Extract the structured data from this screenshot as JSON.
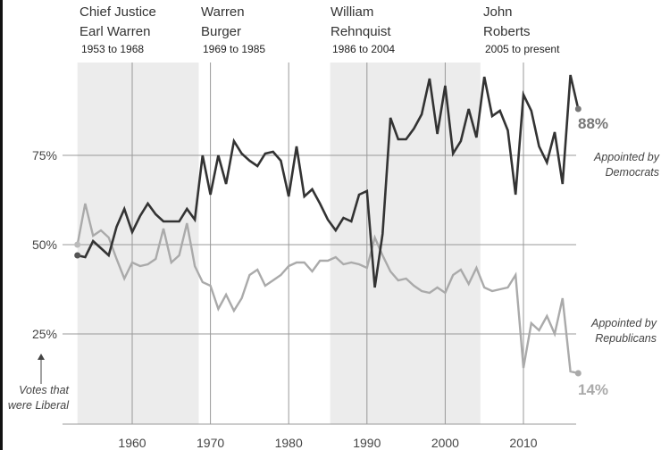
{
  "chart_data": {
    "type": "line",
    "title": "",
    "xlabel": "",
    "ylabel": "Votes that were Liberal",
    "xlim": [
      1953,
      2017
    ],
    "ylim": [
      0,
      100
    ],
    "x_ticks": [
      1960,
      1970,
      1980,
      1990,
      2000,
      2010
    ],
    "x_tick_labels": [
      "1960",
      "1970",
      "1980",
      "1990",
      "2000",
      "2010"
    ],
    "y_ticks": [
      25,
      50,
      75
    ],
    "y_tick_labels": [
      "25%",
      "50%",
      "75%"
    ],
    "grid": true,
    "eras": [
      {
        "title_lines": [
          "Chief Justice",
          "Earl Warren"
        ],
        "period": "1953 to 1968",
        "start": 1953,
        "end": 1968.5,
        "shaded": true
      },
      {
        "title_lines": [
          "Warren",
          "Burger"
        ],
        "period": "1969 to 1985",
        "start": 1968.5,
        "end": 1985.3,
        "shaded": false
      },
      {
        "title_lines": [
          "William",
          "Rehnquist"
        ],
        "period": "1986 to 2004",
        "start": 1985.3,
        "end": 2004.5,
        "shaded": true
      },
      {
        "title_lines": [
          "John",
          "Roberts"
        ],
        "period": "2005 to present",
        "start": 2004.5,
        "end": 2017,
        "shaded": false
      }
    ],
    "x": [
      1953,
      1954,
      1955,
      1956,
      1957,
      1958,
      1959,
      1960,
      1961,
      1962,
      1963,
      1964,
      1965,
      1966,
      1967,
      1968,
      1969,
      1970,
      1971,
      1972,
      1973,
      1974,
      1975,
      1976,
      1977,
      1978,
      1979,
      1980,
      1981,
      1982,
      1983,
      1984,
      1985,
      1986,
      1987,
      1988,
      1989,
      1990,
      1991,
      1992,
      1993,
      1994,
      1995,
      1996,
      1997,
      1998,
      1999,
      2000,
      2001,
      2002,
      2003,
      2004,
      2005,
      2006,
      2007,
      2008,
      2009,
      2010,
      2011,
      2012,
      2013,
      2014,
      2015,
      2016,
      2017
    ],
    "series": [
      {
        "name": "Appointed by Democrats",
        "label_lines": [
          "Appointed by",
          "Democrats"
        ],
        "end_label": "88%",
        "color": "#333333",
        "values": [
          47,
          46.5,
          51,
          49,
          47,
          55,
          60,
          53.5,
          58,
          61.5,
          58.5,
          56.5,
          56.5,
          56.5,
          60,
          57,
          75,
          64,
          75,
          67,
          79,
          75.5,
          73.5,
          72,
          75.5,
          76,
          73.5,
          63.5,
          77.5,
          63.5,
          65.5,
          61.5,
          57,
          54,
          57.5,
          56.5,
          64,
          65,
          38,
          53,
          85.5,
          79.5,
          79.5,
          82.5,
          86.5,
          96.5,
          81,
          94.5,
          75.5,
          79,
          88,
          80,
          97,
          86,
          87.5,
          82,
          64,
          92,
          87.5,
          77.5,
          73,
          81.5,
          67,
          97.5,
          88
        ]
      },
      {
        "name": "Appointed by Republicans",
        "label_lines": [
          "Appointed by",
          "Republicans"
        ],
        "end_label": "14%",
        "color": "#aaaaaa",
        "values": [
          50,
          61.5,
          52.5,
          54,
          52,
          46,
          40.5,
          45,
          44,
          44.5,
          46,
          54.5,
          45,
          47,
          56,
          44,
          39.5,
          38.5,
          32,
          36,
          31.5,
          35,
          41.5,
          43,
          38.5,
          40,
          41.5,
          44,
          45,
          45,
          42.5,
          45.5,
          45.5,
          46.5,
          44.5,
          45,
          44.5,
          43.5,
          52,
          47,
          42.5,
          40,
          40.5,
          38.5,
          37,
          36.5,
          38,
          36.5,
          41.5,
          43,
          39,
          43.5,
          38,
          37,
          37.5,
          38,
          41.5,
          15.5,
          28,
          26,
          30,
          25,
          35,
          14.5,
          14
        ]
      }
    ],
    "axis_note_lines": [
      "Votes that",
      "were Liberal"
    ],
    "shade_color": "#ececec"
  }
}
